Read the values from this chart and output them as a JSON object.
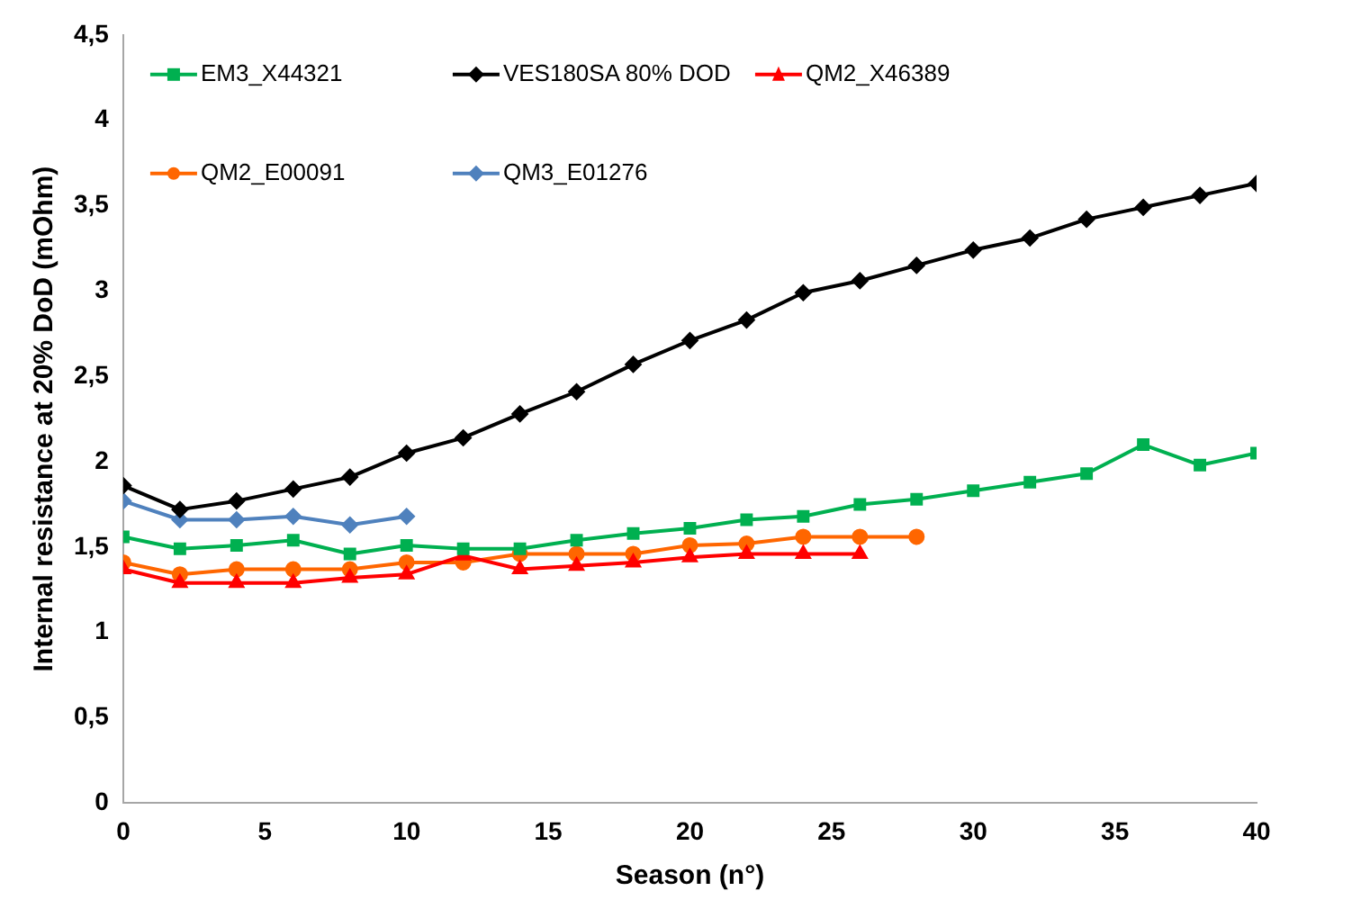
{
  "chart_data": {
    "type": "line",
    "xlabel": "Season (n°)",
    "ylabel": "Internal resistance at 20% DoD (mOhm)",
    "xlim": [
      0,
      40
    ],
    "xticks": [
      0,
      5,
      10,
      15,
      20,
      25,
      30,
      35,
      40
    ],
    "ylim": [
      0,
      4.5
    ],
    "yticks": [
      0,
      {
        "value": 0.5,
        "label": "0,5"
      },
      1,
      {
        "value": 1.5,
        "label": "1,5"
      },
      2,
      {
        "value": 2.5,
        "label": "2,5"
      },
      3,
      {
        "value": 3.5,
        "label": "3,5"
      },
      4,
      {
        "value": 4.5,
        "label": "4,5"
      }
    ],
    "grid": false,
    "legend": "top left",
    "line_style": "solid",
    "series": [
      {
        "name": "EM3_X44321",
        "color": "#00b050",
        "marker": "square",
        "x": [
          0,
          2,
          4,
          6,
          8,
          10,
          12,
          14,
          16,
          18,
          20,
          22,
          24,
          26,
          28,
          30,
          32,
          34,
          36,
          38,
          40
        ],
        "values": [
          1.56,
          1.49,
          1.51,
          1.54,
          1.46,
          1.51,
          1.49,
          1.49,
          1.54,
          1.58,
          1.61,
          1.66,
          1.68,
          1.75,
          1.78,
          1.83,
          1.88,
          1.93,
          2.1,
          1.98,
          2.05
        ]
      },
      {
        "name": "VES180SA 80% DOD",
        "color": "#000000",
        "marker": "diamond",
        "x": [
          0,
          2,
          4,
          6,
          8,
          10,
          12,
          14,
          16,
          18,
          20,
          22,
          24,
          26,
          28,
          30,
          32,
          34,
          36,
          38,
          40
        ],
        "values": [
          1.86,
          1.72,
          1.77,
          1.84,
          1.91,
          2.05,
          2.14,
          2.28,
          2.41,
          2.57,
          2.71,
          2.83,
          2.99,
          3.06,
          3.15,
          3.24,
          3.31,
          3.42,
          3.49,
          3.56,
          3.63
        ]
      },
      {
        "name": "QM2_X46389",
        "color": "#ff0000",
        "marker": "triangle",
        "x": [
          0,
          2,
          4,
          6,
          8,
          10,
          12,
          14,
          16,
          18,
          20,
          22,
          24,
          26
        ],
        "values": [
          1.37,
          1.29,
          1.29,
          1.29,
          1.32,
          1.34,
          1.45,
          1.37,
          1.39,
          1.41,
          1.44,
          1.46,
          1.46,
          1.46
        ]
      },
      {
        "name": "QM2_E00091",
        "color": "#ff6600",
        "marker": "circle",
        "x": [
          0,
          2,
          4,
          6,
          8,
          10,
          12,
          14,
          16,
          18,
          20,
          22,
          24,
          26,
          28
        ],
        "values": [
          1.41,
          1.34,
          1.37,
          1.37,
          1.37,
          1.41,
          1.41,
          1.46,
          1.46,
          1.46,
          1.51,
          1.52,
          1.56,
          1.56,
          1.56
        ]
      },
      {
        "name": "QM3_E01276",
        "color": "#4f81bd",
        "marker": "diamond",
        "x": [
          0,
          2,
          4,
          6,
          8,
          10
        ],
        "values": [
          1.77,
          1.66,
          1.66,
          1.68,
          1.63,
          1.68
        ]
      }
    ]
  }
}
